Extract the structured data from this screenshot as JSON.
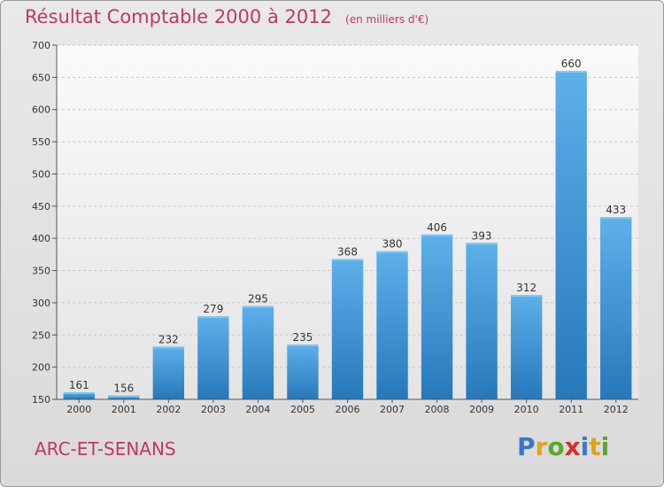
{
  "title": "Résultat Comptable 2000 à 2012",
  "unit_note": "(en milliers d'€)",
  "location": "ARC-ET-SENANS",
  "logo_text": "Proxiti",
  "logo_letters": [
    {
      "ch": "P",
      "color": "#3a78c4"
    },
    {
      "ch": "r",
      "color": "#e2a21a"
    },
    {
      "ch": "o",
      "color": "#5aa82a"
    },
    {
      "ch": "x",
      "color": "#d4312e"
    },
    {
      "ch": "i",
      "color": "#3a78c4"
    },
    {
      "ch": "t",
      "color": "#e2a21a"
    },
    {
      "ch": "i",
      "color": "#5aa82a"
    }
  ],
  "colors": {
    "bar_light": "#5dade8",
    "bar_dark": "#2a7fc0",
    "title": "#c0395f"
  },
  "chart_data": {
    "type": "bar",
    "title": "Résultat Comptable 2000 à 2012",
    "xlabel": "",
    "ylabel": "",
    "categories": [
      "2000",
      "2001",
      "2002",
      "2003",
      "2004",
      "2005",
      "2006",
      "2007",
      "2008",
      "2009",
      "2010",
      "2011",
      "2012"
    ],
    "values": [
      161,
      156,
      232,
      279,
      295,
      235,
      368,
      380,
      406,
      393,
      312,
      660,
      433
    ],
    "ylim": [
      150,
      700
    ],
    "yticks": [
      150,
      200,
      250,
      300,
      350,
      400,
      450,
      500,
      550,
      600,
      650,
      700
    ],
    "grid": true
  }
}
